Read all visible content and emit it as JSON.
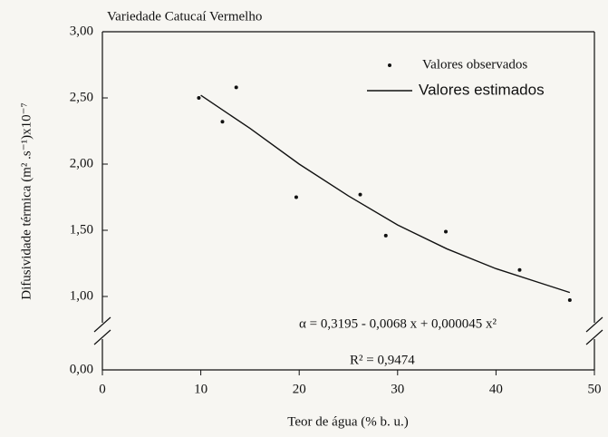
{
  "chart_data": {
    "type": "scatter",
    "title": "Variedade Catucaí Vermelho",
    "xlabel": "Teor de água (% b. u.)",
    "ylabel": "Difusividade térmica (m² .s⁻¹)x10⁻⁷",
    "series": [
      {
        "name": "Valores observados",
        "type": "scatter",
        "color": "#111111",
        "x": [
          9.8,
          12.2,
          13.6,
          19.7,
          26.2,
          28.8,
          34.9,
          42.4,
          47.5
        ],
        "values": [
          2.5,
          2.32,
          2.58,
          1.75,
          1.77,
          1.46,
          1.49,
          1.2,
          0.95
        ]
      },
      {
        "name": "Valores estimados",
        "type": "line",
        "color": "#111111",
        "x": [
          10,
          15,
          20,
          25,
          30,
          35,
          40,
          45,
          47.5
        ],
        "values": [
          2.52,
          2.27,
          2.0,
          1.76,
          1.54,
          1.36,
          1.21,
          1.09,
          1.03
        ]
      }
    ],
    "xlim": [
      0,
      50
    ],
    "xticks": [
      0,
      10,
      20,
      30,
      40,
      50
    ],
    "ylim": [
      0,
      3
    ],
    "y_break": [
      0,
      1
    ],
    "yticks": [
      {
        "value": 0,
        "label": "0,00"
      },
      {
        "value": 1,
        "label": "1,00"
      },
      {
        "value": 1.5,
        "label": "1,50"
      },
      {
        "value": 2,
        "label": "2,00"
      },
      {
        "value": 2.5,
        "label": "2,50"
      },
      {
        "value": 3,
        "label": "3,00"
      }
    ],
    "legend": "upper right",
    "annotations": [
      "α = 0,3195 - 0,0068 x + 0,000045 x²",
      "R² = 0,9474"
    ]
  }
}
